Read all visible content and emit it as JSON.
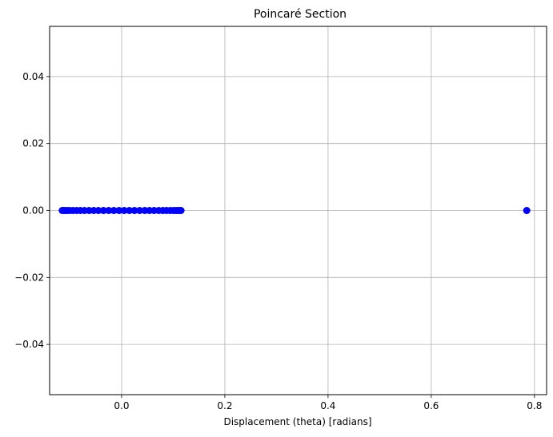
{
  "chart_data": {
    "type": "scatter",
    "title": "Poincaré Section",
    "xlabel": "Displacement (theta) [radians]",
    "ylabel": "",
    "xlim": [
      -0.1395,
      0.8235
    ],
    "ylim": [
      -0.055,
      0.055
    ],
    "xticks": [
      {
        "value": 0.0,
        "label": "0.0"
      },
      {
        "value": 0.2,
        "label": "0.2"
      },
      {
        "value": 0.4,
        "label": "0.4"
      },
      {
        "value": 0.6,
        "label": "0.6"
      },
      {
        "value": 0.8,
        "label": "0.8"
      }
    ],
    "yticks": [
      {
        "value": -0.04,
        "label": "−0.04"
      },
      {
        "value": -0.02,
        "label": "−0.02"
      },
      {
        "value": 0.0,
        "label": "0.00"
      },
      {
        "value": 0.02,
        "label": "0.02"
      },
      {
        "value": 0.04,
        "label": "0.04"
      }
    ],
    "grid": true,
    "marker_color": "#0000ff",
    "series": [
      {
        "points": [
          [
            -0.115,
            0
          ],
          [
            -0.112,
            0
          ],
          [
            -0.109,
            0
          ],
          [
            -0.105,
            0
          ],
          [
            -0.1,
            0
          ],
          [
            -0.094,
            0
          ],
          [
            -0.087,
            0
          ],
          [
            -0.08,
            0
          ],
          [
            -0.072,
            0
          ],
          [
            -0.063,
            0
          ],
          [
            -0.054,
            0
          ],
          [
            -0.045,
            0
          ],
          [
            -0.035,
            0
          ],
          [
            -0.025,
            0
          ],
          [
            -0.015,
            0
          ],
          [
            -0.005,
            0
          ],
          [
            0.005,
            0
          ],
          [
            0.015,
            0
          ],
          [
            0.025,
            0
          ],
          [
            0.035,
            0
          ],
          [
            0.045,
            0
          ],
          [
            0.054,
            0
          ],
          [
            0.063,
            0
          ],
          [
            0.072,
            0
          ],
          [
            0.08,
            0
          ],
          [
            0.087,
            0
          ],
          [
            0.094,
            0
          ],
          [
            0.1,
            0
          ],
          [
            0.105,
            0
          ],
          [
            0.109,
            0
          ],
          [
            0.112,
            0
          ],
          [
            0.115,
            0
          ],
          [
            0.785,
            0
          ]
        ]
      }
    ]
  }
}
